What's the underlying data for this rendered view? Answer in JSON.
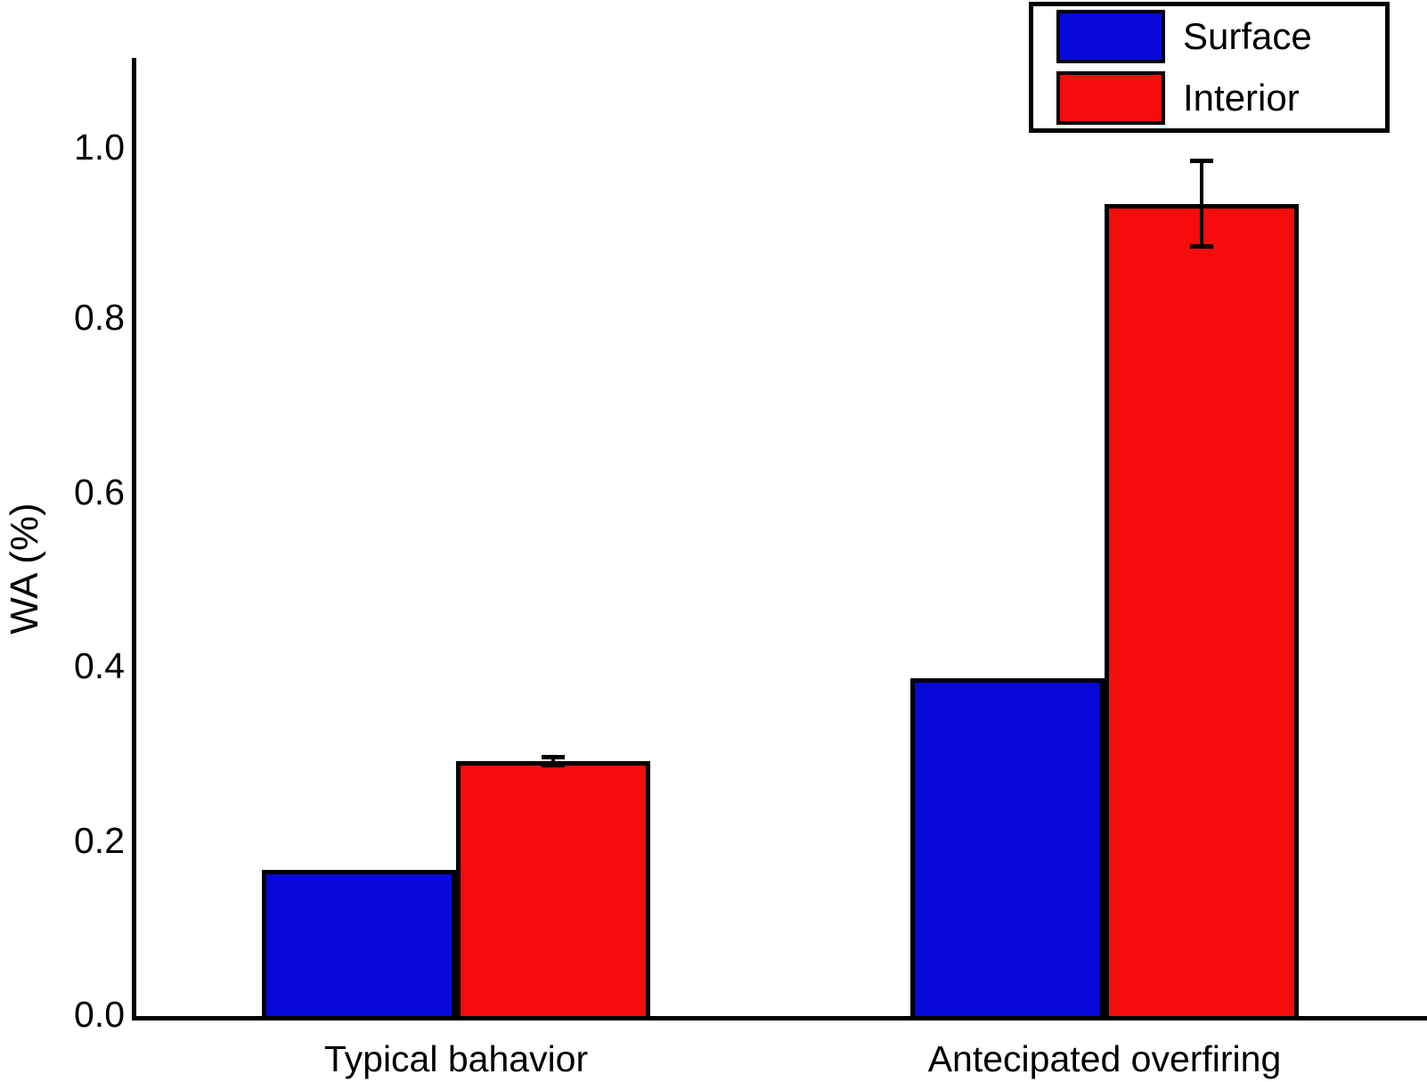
{
  "chart_data": {
    "type": "bar",
    "title": "",
    "ylabel": "WA (%)",
    "xlabel": "",
    "categories": [
      "Typical bahavior",
      "Antecipated overfiring"
    ],
    "series": [
      {
        "name": "Surface",
        "color": "#0707dc",
        "values": [
          0.17,
          0.39
        ],
        "errors": [
          null,
          null
        ]
      },
      {
        "name": "Interior",
        "color": "#f70c0c",
        "values": [
          0.295,
          0.935
        ],
        "errors": [
          0.005,
          0.05
        ]
      }
    ],
    "y_ticks": [
      {
        "label": "0.0",
        "value": 0.0
      },
      {
        "label": "0.2",
        "value": 0.2
      },
      {
        "label": "0.4",
        "value": 0.4
      },
      {
        "label": "0.6",
        "value": 0.6
      },
      {
        "label": "0.8",
        "value": 0.8
      },
      {
        "label": "1.0",
        "value": 1.0
      }
    ],
    "ylim": [
      0,
      1.1
    ],
    "grid": false,
    "legend_position": "top-right",
    "bar_edge_color": "#000000",
    "error_bar_color": "#000000",
    "axis_color": "#000000",
    "background_color": "#ffffff"
  }
}
